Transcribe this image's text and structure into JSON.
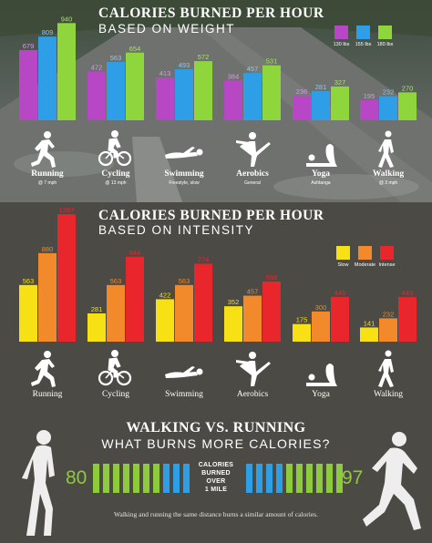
{
  "section1": {
    "title": "CALORIES BURNED PER HOUR",
    "subtitle": "BASED ON WEIGHT",
    "legend": [
      {
        "label": "130 lbs",
        "color": "#b847c6"
      },
      {
        "label": "155 lbs",
        "color": "#2e9fe6"
      },
      {
        "label": "180 lbs",
        "color": "#8ed63c"
      }
    ]
  },
  "section2": {
    "title": "CALORIES BURNED PER HOUR",
    "subtitle": "BASED ON INTENSITY",
    "legend": [
      {
        "label": "Slow",
        "color": "#f7e013"
      },
      {
        "label": "Moderate",
        "color": "#f2892a"
      },
      {
        "label": "Intense",
        "color": "#e8262b"
      }
    ]
  },
  "activities": [
    {
      "name": "Running",
      "note": "@ 7 mph",
      "icon": "running-icon"
    },
    {
      "name": "Cycling",
      "note": "@ 13 mph",
      "icon": "cycling-icon"
    },
    {
      "name": "Swimming",
      "note": "Freestyle, slow",
      "icon": "swimming-icon"
    },
    {
      "name": "Aerobics",
      "note": "General",
      "icon": "aerobics-icon"
    },
    {
      "name": "Yoga",
      "note": "Ashtanga",
      "icon": "yoga-icon"
    },
    {
      "name": "Walking",
      "note": "@ 3 mph",
      "icon": "walking-icon"
    }
  ],
  "chart_data": [
    {
      "type": "bar",
      "title": "CALORIES BURNED PER HOUR",
      "subtitle": "BASED ON WEIGHT",
      "categories": [
        "Running",
        "Cycling",
        "Swimming",
        "Aerobics",
        "Yoga",
        "Walking"
      ],
      "series": [
        {
          "name": "130 lbs",
          "values": [
            679,
            472,
            413,
            384,
            236,
            195
          ]
        },
        {
          "name": "155 lbs",
          "values": [
            809,
            563,
            493,
            457,
            281,
            232
          ]
        },
        {
          "name": "180 lbs",
          "values": [
            940,
            654,
            572,
            531,
            327,
            270
          ]
        }
      ],
      "legend": "top-right"
    },
    {
      "type": "bar",
      "title": "CALORIES BURNED PER HOUR",
      "subtitle": "BASED ON INTENSITY",
      "categories": [
        "Running",
        "Cycling",
        "Swimming",
        "Aerobics",
        "Yoga",
        "Walking"
      ],
      "series": [
        {
          "name": "Slow",
          "values": [
            563,
            281,
            422,
            352,
            175,
            141
          ]
        },
        {
          "name": "Moderate",
          "values": [
            880,
            563,
            563,
            457,
            300,
            232
          ]
        },
        {
          "name": "Intense",
          "values": [
            1267,
            844,
            774,
            598,
            445,
            443
          ]
        }
      ],
      "legend": "top-right"
    }
  ],
  "walk_run": {
    "title": "WALKING VS. RUNNING",
    "subtitle": "WHAT BURNS MORE CALORIES?",
    "walking_value": "80",
    "running_value": "97",
    "center_lines": [
      "CALORIES",
      "BURNED",
      "OVER",
      "1 MILE"
    ],
    "footnote": "Walking and running the same distance burns a similar amount of calories.",
    "colors": {
      "green": "#8ecb3c",
      "blue": "#2e9fe6"
    }
  }
}
